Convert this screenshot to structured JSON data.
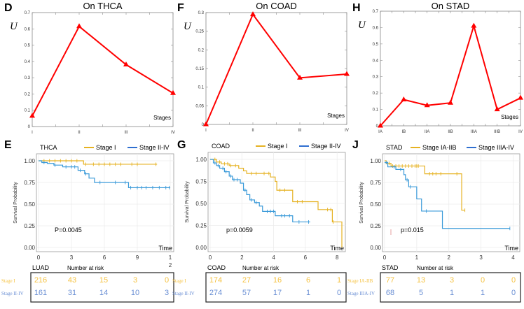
{
  "chart_data": [
    {
      "panel": "D",
      "type": "line",
      "title": "On THCA",
      "ylabel": "U",
      "xlabel": "Stages",
      "categories": [
        "I",
        "II",
        "III",
        "IV"
      ],
      "values": [
        0.065,
        0.615,
        0.38,
        0.205
      ],
      "ylim": [
        0,
        0.7
      ],
      "yticks": [
        "0",
        "0.1",
        "0.2",
        "0.3",
        "0.4",
        "0.5",
        "0.6",
        "0.7"
      ],
      "ytick_values": [
        0,
        0.1,
        0.2,
        0.3,
        0.4,
        0.5,
        0.6,
        0.7
      ],
      "color": "#ff0000"
    },
    {
      "panel": "F",
      "type": "line",
      "title": "On COAD",
      "ylabel": "U",
      "xlabel": "Stages",
      "categories": [
        "I",
        "II",
        "III",
        "IV"
      ],
      "values": [
        0.0,
        0.295,
        0.125,
        0.135
      ],
      "ylim": [
        0,
        0.3
      ],
      "yticks": [
        "0",
        "0.05",
        "0.1",
        "0.15",
        "0.2",
        "0.25",
        "0.3"
      ],
      "ytick_values": [
        0,
        0.05,
        0.1,
        0.15,
        0.2,
        0.25,
        0.3
      ],
      "color": "#ff0000"
    },
    {
      "panel": "H",
      "type": "line",
      "title": "On STAD",
      "ylabel": "U",
      "xlabel": "Stages",
      "categories": [
        "IA",
        "IB",
        "IIA",
        "IIB",
        "IIIA",
        "IIIB",
        "IV"
      ],
      "values": [
        0.0,
        0.16,
        0.125,
        0.14,
        0.61,
        0.1,
        0.17
      ],
      "ylim": [
        0,
        0.7
      ],
      "yticks": [
        "0",
        "0.1",
        "0.2",
        "0.3",
        "0.4",
        "0.5",
        "0.6",
        "0.7"
      ],
      "ytick_values": [
        0,
        0.1,
        0.2,
        0.3,
        0.4,
        0.5,
        0.6,
        0.7
      ],
      "color": "#ff0000"
    },
    {
      "panel": "E",
      "type": "line",
      "subtype": "kaplan-meier",
      "title": "THCA",
      "ylabel": "Survival Probability",
      "xlabel": "Time",
      "xlim": [
        0,
        12
      ],
      "ylim": [
        0,
        1
      ],
      "xticks": [
        "0",
        "3",
        "6",
        "9",
        "1\n2"
      ],
      "xtick_values": [
        0,
        3,
        6,
        9,
        12
      ],
      "yticks": [
        "0.00",
        "0.25",
        "0.50",
        "0.75",
        "1.00"
      ],
      "ytick_values": [
        0,
        0.25,
        0.5,
        0.75,
        1.0
      ],
      "annotation": "P=0.0045",
      "series": [
        {
          "name": "Stage I",
          "color": "#e6b222",
          "steps": [
            [
              0,
              1.0
            ],
            [
              4.1,
              0.96
            ],
            [
              10.8,
              0.96
            ]
          ],
          "censors": [
            0.5,
            1.0,
            1.5,
            2.0,
            2.5,
            3.0,
            3.5,
            4.3,
            5.0,
            5.5,
            6.0,
            6.5,
            7.0,
            7.5,
            8.5,
            9.0,
            10.7
          ]
        },
        {
          "name": "Stage II-IV",
          "color": "#3a9ad9",
          "steps": [
            [
              0,
              1.0
            ],
            [
              0.3,
              0.98
            ],
            [
              0.8,
              0.97
            ],
            [
              1.4,
              0.95
            ],
            [
              2.2,
              0.93
            ],
            [
              3.6,
              0.89
            ],
            [
              4.2,
              0.85
            ],
            [
              4.6,
              0.8
            ],
            [
              5.1,
              0.75
            ],
            [
              8.2,
              0.69
            ],
            [
              12,
              0.69
            ]
          ],
          "censors": [
            0.5,
            1.5,
            2.5,
            3.0,
            3.3,
            3.8,
            4.3,
            5.6,
            7.0,
            7.9,
            8.4,
            9.0,
            9.4,
            9.8,
            10.4,
            11.0,
            11.6,
            11.9
          ]
        }
      ],
      "risk_table": {
        "label": "LUAD",
        "header": "Number at risk",
        "rows": [
          {
            "group": "Stage I",
            "color": "#f5c242",
            "values": [
              216,
              43,
              15,
              3,
              0
            ]
          },
          {
            "group": "Stage II-IV",
            "color": "#6a8fd4",
            "values": [
              161,
              31,
              14,
              10,
              3
            ]
          }
        ]
      }
    },
    {
      "panel": "G",
      "type": "line",
      "subtype": "kaplan-meier",
      "title": "COAD",
      "ylabel": "Survival Probability",
      "xlabel": "Time",
      "xlim": [
        0,
        8.3
      ],
      "ylim": [
        0,
        1
      ],
      "xticks": [
        "0",
        "2",
        "4",
        "6",
        "8"
      ],
      "xtick_values": [
        0,
        2,
        4,
        6,
        8
      ],
      "yticks": [
        "0.00",
        "0.25",
        "0.50",
        "0.75",
        "1.00"
      ],
      "ytick_values": [
        0,
        0.25,
        0.5,
        0.75,
        1.0
      ],
      "annotation": "p=0.0059",
      "series": [
        {
          "name": "Stage I",
          "color": "#e6b222",
          "steps": [
            [
              0,
              1.0
            ],
            [
              0.4,
              0.97
            ],
            [
              0.7,
              0.95
            ],
            [
              1.2,
              0.93
            ],
            [
              1.8,
              0.9
            ],
            [
              2.1,
              0.87
            ],
            [
              2.3,
              0.84
            ],
            [
              3.6,
              0.84
            ],
            [
              3.8,
              0.8
            ],
            [
              4.1,
              0.75
            ],
            [
              4.2,
              0.65
            ],
            [
              5.1,
              0.65
            ],
            [
              5.2,
              0.52
            ],
            [
              6.8,
              0.43
            ],
            [
              7.7,
              0.29
            ],
            [
              8.3,
              0.29
            ],
            [
              8.3,
              0.0
            ]
          ],
          "censors": [
            0.3,
            0.6,
            0.9,
            1.1,
            1.3,
            1.6,
            2.6,
            2.9,
            3.4,
            3.7,
            4.4,
            4.7,
            5.5,
            5.8,
            7.4,
            7.6,
            7.75
          ]
        },
        {
          "name": "Stage II-IV",
          "color": "#3a9ad9",
          "steps": [
            [
              0,
              1.0
            ],
            [
              0.2,
              0.96
            ],
            [
              0.4,
              0.93
            ],
            [
              0.6,
              0.9
            ],
            [
              0.9,
              0.86
            ],
            [
              1.2,
              0.81
            ],
            [
              1.4,
              0.77
            ],
            [
              1.9,
              0.73
            ],
            [
              2.1,
              0.65
            ],
            [
              2.3,
              0.6
            ],
            [
              2.5,
              0.54
            ],
            [
              2.8,
              0.51
            ],
            [
              3.1,
              0.47
            ],
            [
              3.3,
              0.41
            ],
            [
              4.1,
              0.36
            ],
            [
              5.2,
              0.29
            ],
            [
              6.3,
              0.29
            ]
          ],
          "censors": [
            0.3,
            0.5,
            0.8,
            1.0,
            1.3,
            1.5,
            1.7,
            2.2,
            2.6,
            2.9,
            3.6,
            3.8,
            4.0,
            4.5,
            4.7,
            5.0,
            5.6,
            6.2
          ]
        }
      ],
      "risk_table": {
        "label": "COAD",
        "header": "Number at risk",
        "rows": [
          {
            "group": "Stage I",
            "color": "#f5c242",
            "values": [
              174,
              27,
              16,
              6,
              1
            ]
          },
          {
            "group": "Stage II-IV",
            "color": "#6a8fd4",
            "values": [
              274,
              57,
              17,
              1,
              0
            ]
          }
        ]
      }
    },
    {
      "panel": "J",
      "type": "line",
      "subtype": "kaplan-meier",
      "title": "STAD",
      "ylabel": "Survival Probability",
      "xlabel": "Time",
      "xlim": [
        0,
        4.1
      ],
      "ylim": [
        0,
        1
      ],
      "xticks": [
        "0",
        "1",
        "2",
        "3",
        "4"
      ],
      "xtick_values": [
        0,
        1,
        2,
        3,
        4
      ],
      "yticks": [
        "0.00",
        "0.25",
        "0.50",
        "0.75",
        "1.00"
      ],
      "ytick_values": [
        0,
        0.25,
        0.5,
        0.75,
        1.0
      ],
      "annotation": "p=0.015",
      "series": [
        {
          "name": "Stage IA-IIB",
          "color": "#e6b222",
          "steps": [
            [
              0,
              1.0
            ],
            [
              0.05,
              0.97
            ],
            [
              0.2,
              0.94
            ],
            [
              1.25,
              0.85
            ],
            [
              2.4,
              0.43
            ],
            [
              2.5,
              0.43
            ]
          ],
          "censors": [
            0.1,
            0.15,
            0.25,
            0.35,
            0.45,
            0.55,
            0.65,
            0.75,
            0.85,
            0.95,
            1.0,
            1.05,
            1.4,
            1.5,
            1.6,
            1.75,
            2.25,
            2.5
          ]
        },
        {
          "name": "Stage IIIA-IV",
          "color": "#3a9ad9",
          "steps": [
            [
              0,
              0.98
            ],
            [
              0.1,
              0.93
            ],
            [
              0.35,
              0.9
            ],
            [
              0.6,
              0.84
            ],
            [
              0.65,
              0.78
            ],
            [
              0.75,
              0.7
            ],
            [
              1.0,
              0.56
            ],
            [
              1.15,
              0.42
            ],
            [
              1.8,
              0.22
            ],
            [
              3.9,
              0.22
            ]
          ],
          "censors": [
            0.05,
            0.3,
            0.5,
            0.7,
            0.8,
            1.3,
            3.9
          ]
        }
      ],
      "risk_table": {
        "label": "STAD",
        "header": "Number at risk",
        "rows": [
          {
            "group": "Stage IA-IIB",
            "color": "#f5c242",
            "values": [
              77,
              13,
              3,
              0,
              0
            ]
          },
          {
            "group": "Stage IIIA-IV",
            "color": "#6a8fd4",
            "values": [
              68,
              5,
              1,
              1,
              0
            ]
          }
        ]
      }
    }
  ],
  "panels": {
    "D": "D",
    "F": "F",
    "H": "H",
    "E": "E",
    "G": "G",
    "J": "J"
  }
}
